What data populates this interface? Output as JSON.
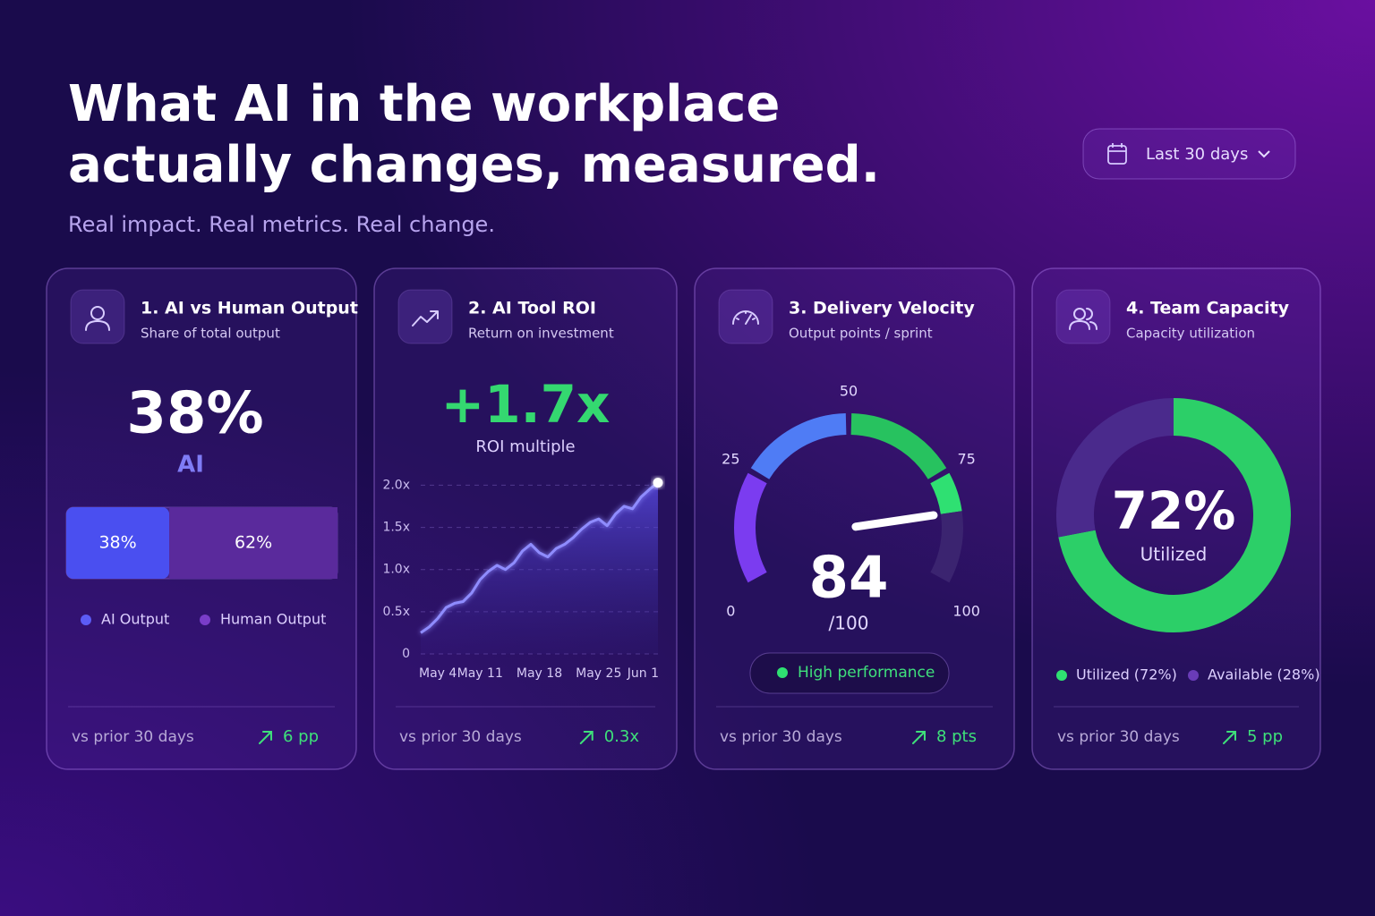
{
  "header": {
    "title": [
      "What AI in the workplace",
      "actually changes, measured."
    ],
    "subtitle": "Real impact. Real metrics. Real change."
  },
  "filter": {
    "label": "Last 30 days"
  },
  "cards": [
    {
      "title": "1. AI vs Human Output",
      "subtitle": "Share of total output",
      "kpi": "38%",
      "kpi_label": "AI",
      "chart_data": {
        "type": "stacked_bar",
        "xlim": [
          0,
          100
        ],
        "series": [
          {
            "name": "AI Output",
            "color": "#4a4ff0",
            "values": [
              38
            ],
            "value_labels": [
              "38%"
            ]
          },
          {
            "name": "Human Output",
            "color": "#5a2a9c",
            "values": [
              62
            ],
            "value_labels": [
              "62%"
            ]
          }
        ]
      },
      "footer": {
        "label": "vs prior 30 days",
        "delta": "6 pp"
      }
    },
    {
      "title": "2. AI Tool ROI",
      "subtitle": "Return on investment",
      "kpi": "+1.7x",
      "kpi_label": "ROI multiple",
      "chart_data": {
        "type": "line",
        "x": [
          "May 4",
          "May 5",
          "May 6",
          "May 7",
          "May 8",
          "May 9",
          "May 10",
          "May 11",
          "May 12",
          "May 13",
          "May 14",
          "May 15",
          "May 16",
          "May 17",
          "May 18",
          "May 19",
          "May 20",
          "May 21",
          "May 22",
          "May 23",
          "May 24",
          "May 25",
          "May 26",
          "May 27",
          "May 28",
          "May 29",
          "May 30",
          "May 31",
          "Jun 1"
        ],
        "xticks": [
          "May 4",
          "May 11",
          "May 18",
          "May 25",
          "Jun 1"
        ],
        "series": [
          {
            "name": "ROI",
            "color": "#8f8cff",
            "values": [
              0.25,
              0.32,
              0.42,
              0.55,
              0.6,
              0.62,
              0.72,
              0.88,
              0.98,
              1.05,
              1.0,
              1.08,
              1.22,
              1.3,
              1.2,
              1.15,
              1.25,
              1.3,
              1.38,
              1.48,
              1.56,
              1.6,
              1.52,
              1.66,
              1.75,
              1.72,
              1.86,
              1.95,
              2.03
            ]
          }
        ],
        "ylim": [
          0,
          2.1
        ],
        "yticks": [
          0,
          {
            "value": 0.5,
            "label": "0.5x"
          },
          {
            "value": 1.0,
            "label": "1.0x"
          },
          {
            "value": 1.5,
            "label": "1.5x"
          },
          {
            "value": 2.0,
            "label": "2.0x"
          }
        ],
        "grid": true
      },
      "footer": {
        "label": "vs prior 30 days",
        "delta": "0.3x"
      }
    },
    {
      "title": "3. Delivery Velocity",
      "subtitle": "Output points / sprint",
      "chart_data": {
        "type": "gauge",
        "value": 84,
        "range": [
          0,
          100
        ],
        "ticks": [
          0,
          25,
          50,
          75,
          100
        ],
        "band_colors": [
          "#7b3cf0",
          "#4f7cf5",
          "#27c25f",
          "#2fe072"
        ],
        "track_color": "#3b2470",
        "max_label": "/100",
        "status": "High performance"
      },
      "footer": {
        "label": "vs prior 30 days",
        "delta": "8 pts"
      }
    },
    {
      "title": "4. Team Capacity",
      "subtitle": "Capacity utilization",
      "chart_data": {
        "type": "pie",
        "categories": [
          "Utilized (72%)",
          "Available (28%)"
        ],
        "values": [
          72,
          28
        ],
        "colors": [
          "#2ccf68",
          "#4a2a8c"
        ],
        "center_value": "72%",
        "center_label": "Utilized"
      },
      "footer": {
        "label": "vs prior 30 days",
        "delta": "5 pp"
      }
    }
  ]
}
